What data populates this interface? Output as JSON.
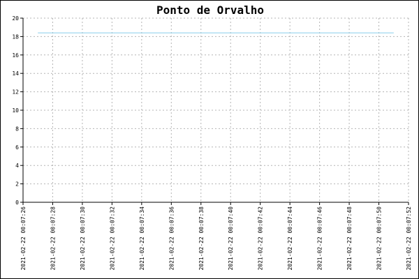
{
  "chart_data": {
    "type": "line",
    "title": "Ponto de Orvalho",
    "xlabel": "",
    "ylabel": "",
    "ylim": [
      0,
      20
    ],
    "y_ticks": [
      0,
      2,
      4,
      6,
      8,
      10,
      12,
      14,
      16,
      18,
      20
    ],
    "x_ticks": [
      "2021-02-22 00:07:26",
      "2021-02-22 00:07:28",
      "2021-02-22 00:07:30",
      "2021-02-22 00:07:32",
      "2021-02-22 00:07:34",
      "2021-02-22 00:07:36",
      "2021-02-22 00:07:38",
      "2021-02-22 00:07:40",
      "2021-02-22 00:07:42",
      "2021-02-22 00:07:44",
      "2021-02-22 00:07:46",
      "2021-02-22 00:07:48",
      "2021-02-22 00:07:50",
      "2021-02-22 00:07:52"
    ],
    "xlim": [
      "2021-02-22 00:07:26",
      "2021-02-22 00:07:52"
    ],
    "grid": true,
    "series": [
      {
        "color": "#87ceeb",
        "points": [
          {
            "x": "2021-02-22 00:07:27",
            "y": 18.4
          },
          {
            "x": "2021-02-22 00:07:51",
            "y": 18.4
          }
        ]
      }
    ]
  }
}
